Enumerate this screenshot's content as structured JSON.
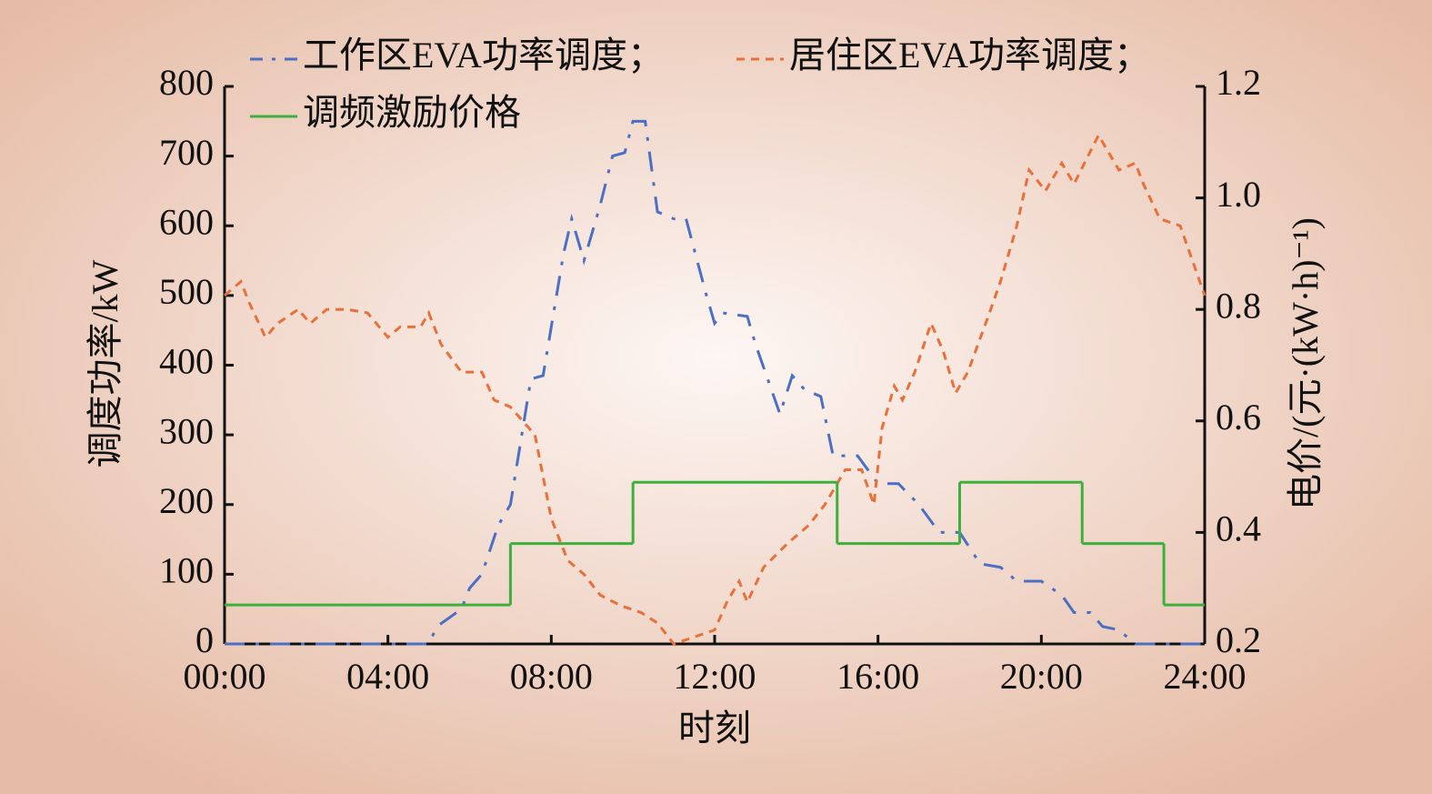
{
  "chart_data": {
    "type": "line",
    "xlabel": "时刻",
    "ylabel": "调度功率/kW",
    "y2label": "电价/(元·(kW·h)⁻¹)",
    "xlim": [
      0,
      24
    ],
    "xticks": [
      {
        "value": 0,
        "label": "00:00"
      },
      {
        "value": 4,
        "label": "04:00"
      },
      {
        "value": 8,
        "label": "08:00"
      },
      {
        "value": 12,
        "label": "12:00"
      },
      {
        "value": 16,
        "label": "16:00"
      },
      {
        "value": 20,
        "label": "20:00"
      },
      {
        "value": 24,
        "label": "24:00"
      }
    ],
    "ylim": [
      0,
      800
    ],
    "yticks": [
      0,
      100,
      200,
      300,
      400,
      500,
      600,
      700,
      800
    ],
    "y2lim": [
      0.2,
      1.2
    ],
    "y2ticks": [
      0.2,
      0.4,
      0.6,
      0.8,
      {
        "value": 1.0,
        "label": "1.0"
      },
      {
        "value": 1.2,
        "label": "1.2"
      }
    ],
    "series": [
      {
        "name": "工作区EVA功率调度；",
        "color": "#4a6fc4",
        "linestyle": "dashdot",
        "x": [
          0,
          5,
          5.2,
          5.8,
          6.0,
          6.3,
          6.7,
          7.0,
          7.5,
          7.8,
          8.3,
          8.5,
          8.8,
          9.2,
          9.5,
          9.8,
          10.0,
          10.3,
          10.6,
          11.0,
          11.3,
          11.8,
          12.0,
          12.2,
          12.8,
          13.0,
          13.3,
          13.6,
          13.9,
          14.2,
          14.6,
          14.9,
          15.5,
          16.0,
          16.5,
          17.0,
          17.5,
          18.0,
          18.5,
          19.0,
          19.4,
          20.0,
          20.5,
          20.8,
          21.2,
          21.5,
          21.9,
          22.3,
          24
        ],
        "values": [
          0,
          0,
          25,
          50,
          80,
          100,
          170,
          200,
          380,
          385,
          560,
          610,
          550,
          630,
          700,
          705,
          750,
          750,
          620,
          610,
          610,
          500,
          460,
          475,
          470,
          430,
          380,
          330,
          385,
          365,
          355,
          270,
          270,
          230,
          230,
          200,
          160,
          160,
          115,
          110,
          90,
          90,
          70,
          45,
          45,
          25,
          20,
          0,
          0
        ]
      },
      {
        "name": "居住区EVA功率调度；",
        "color": "#e8703a",
        "linestyle": "dashed",
        "x": [
          0,
          0.4,
          0.6,
          1.0,
          1.3,
          1.8,
          2.1,
          2.5,
          3.0,
          3.5,
          4.0,
          4.3,
          4.8,
          5.0,
          5.3,
          5.8,
          6.3,
          6.6,
          7.0,
          7.3,
          7.6,
          8.0,
          8.4,
          8.8,
          9.2,
          9.7,
          10.2,
          10.6,
          11.0,
          11.5,
          12.0,
          12.3,
          12.6,
          12.8,
          13.2,
          13.8,
          14.3,
          14.7,
          15.2,
          15.6,
          15.9,
          16.1,
          16.4,
          16.6,
          16.9,
          17.3,
          17.6,
          17.9,
          18.2,
          18.7,
          19.0,
          19.4,
          19.7,
          20.1,
          20.5,
          20.8,
          21.4,
          21.9,
          22.3,
          22.5,
          22.9,
          23.4,
          24
        ],
        "values": [
          500,
          520,
          490,
          440,
          460,
          480,
          460,
          480,
          480,
          475,
          440,
          455,
          455,
          475,
          430,
          390,
          390,
          350,
          340,
          320,
          300,
          180,
          120,
          100,
          70,
          55,
          45,
          30,
          0,
          10,
          20,
          60,
          90,
          60,
          110,
          145,
          170,
          200,
          250,
          250,
          200,
          310,
          370,
          350,
          390,
          460,
          420,
          360,
          390,
          470,
          520,
          600,
          680,
          650,
          690,
          660,
          730,
          680,
          690,
          660,
          610,
          600,
          500
        ]
      },
      {
        "name": "调频激励价格",
        "color": "#3daf3d",
        "linestyle": "solid",
        "axis": "y2",
        "step": "post",
        "x": [
          0,
          7,
          10,
          15,
          18,
          21,
          23
        ],
        "values": [
          0.27,
          0.38,
          0.49,
          0.38,
          0.49,
          0.38,
          0.27
        ]
      }
    ]
  }
}
